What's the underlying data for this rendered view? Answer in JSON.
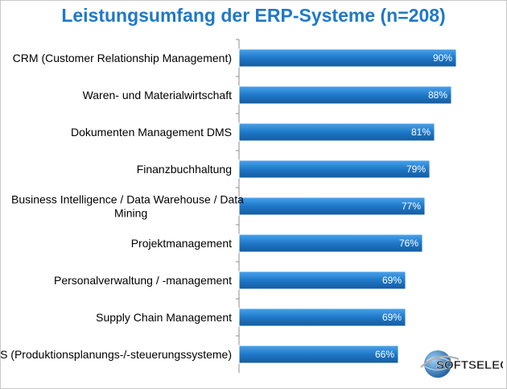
{
  "chart_data": {
    "type": "bar",
    "orientation": "horizontal",
    "title": "Leistungsumfang der ERP-Systeme (n=208)",
    "categories": [
      "CRM (Customer Relationship Management)",
      "Waren- und Materialwirtschaft",
      "Dokumenten Management DMS",
      "Finanzbuchhaltung",
      "Business Intelligence / Data Warehouse / Data Mining",
      "Projektmanagement",
      "Personalverwaltung / -management",
      "Supply Chain Management",
      "PPS (Produktionsplanungs-/-steuerungssysteme)"
    ],
    "category_lines": [
      [
        "CRM (Customer Relationship Management)"
      ],
      [
        "Waren- und Materialwirtschaft"
      ],
      [
        "Dokumenten Management DMS"
      ],
      [
        "Finanzbuchhaltung"
      ],
      [
        "Business Intelligence / Data Warehouse / Data",
        "Mining"
      ],
      [
        "Projektmanagement"
      ],
      [
        "Personalverwaltung / -management"
      ],
      [
        "Supply Chain Management"
      ],
      [
        "PPS (Produktionsplanungs-/-steuerungssysteme)"
      ]
    ],
    "values": [
      90,
      88,
      81,
      79,
      77,
      76,
      69,
      69,
      66
    ],
    "value_labels": [
      "90%",
      "88%",
      "81%",
      "79%",
      "77%",
      "76%",
      "69%",
      "69%",
      "66%"
    ],
    "unit": "%",
    "xlim": [
      0,
      100
    ],
    "grid": false,
    "legend": "none",
    "bar_color": "#1f78c8",
    "title_color": "#1f78c8"
  },
  "logo": {
    "text": "SOFTSELECT",
    "icon": "globe-icon"
  }
}
